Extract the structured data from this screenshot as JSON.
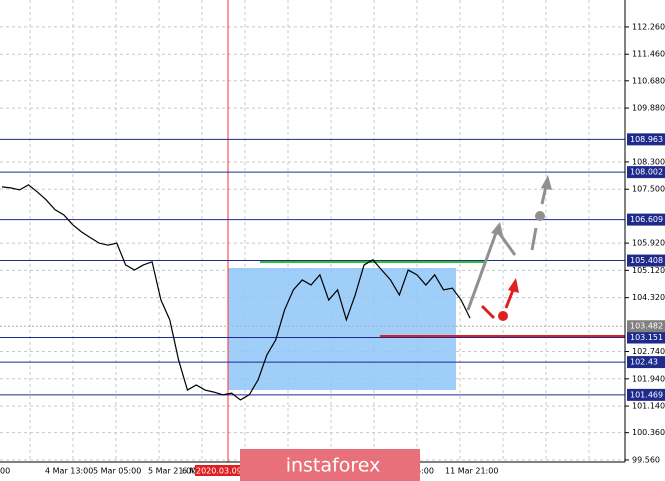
{
  "chart_data": {
    "type": "line",
    "color": "#000000",
    "values": [
      107.57,
      107.54,
      107.48,
      107.63,
      107.42,
      107.19,
      106.9,
      106.75,
      106.46,
      106.25,
      106.08,
      105.92,
      105.86,
      105.92,
      105.28,
      105.13,
      105.28,
      105.37,
      104.25,
      103.67,
      102.49,
      101.61,
      101.76,
      101.61,
      101.55,
      101.47,
      101.52,
      101.32,
      101.47,
      101.91,
      102.64,
      103.08,
      103.96,
      104.55,
      104.84,
      104.69,
      104.99,
      104.25,
      104.55,
      103.67,
      104.4,
      105.28,
      105.43,
      105.13,
      104.84,
      104.4,
      105.13,
      104.99,
      104.69,
      104.99,
      104.55,
      104.6,
      104.25,
      103.72
    ],
    "ylim": [
      99.5,
      113.05
    ],
    "yticks": [
      {
        "value": 112.26,
        "label": "112.260"
      },
      {
        "value": 111.46,
        "label": "111.460"
      },
      {
        "value": 110.68,
        "label": "110.680"
      },
      {
        "value": 109.88,
        "label": "109.880"
      },
      {
        "value": 108.3,
        "label": "108.300"
      },
      {
        "value": 107.5,
        "label": "107.500"
      },
      {
        "value": 105.92,
        "label": "105.920"
      },
      {
        "value": 105.12,
        "label": "105.120"
      },
      {
        "value": 104.32,
        "label": "104.320"
      },
      {
        "value": 102.74,
        "label": "102.740"
      },
      {
        "value": 101.94,
        "label": "101.940"
      },
      {
        "value": 101.14,
        "label": "101.140"
      },
      {
        "value": 100.36,
        "label": "100.360"
      },
      {
        "value": 99.56,
        "label": "99.560"
      }
    ],
    "levels": [
      108.963,
      108.002,
      106.609,
      105.408,
      103.151,
      102.43,
      101.469
    ],
    "level_color": "#1e2a8c",
    "current_price": 103.482,
    "x_labels": [
      "00",
      "4 Mar 13:00",
      "5 Mar 05:00",
      "5 Mar 21:00",
      "6 M",
      "2020.03.09 0",
      "5:00",
      "11 Mar 21:00"
    ],
    "watermark": "instaforex",
    "grid": true
  }
}
